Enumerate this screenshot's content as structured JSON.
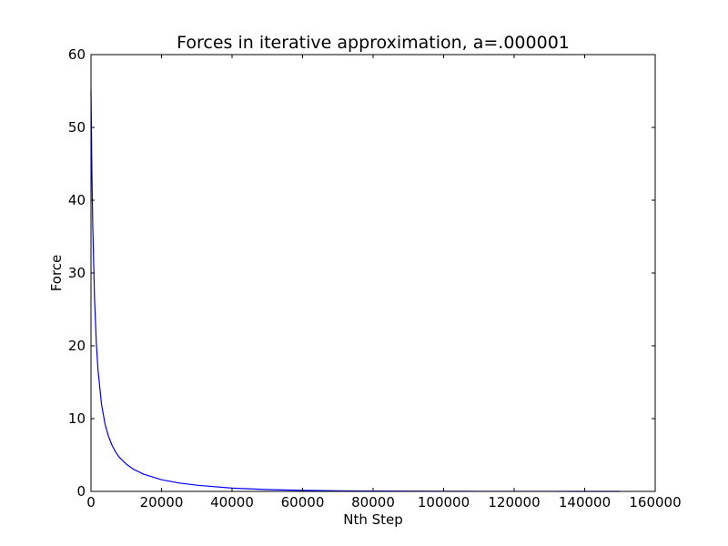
{
  "chart_data": {
    "type": "line",
    "title": "Forces in iterative approximation, a=.000001",
    "xlabel": "Nth Step",
    "ylabel": "Force",
    "xlim": [
      0,
      160000
    ],
    "ylim": [
      0,
      60
    ],
    "xticks": [
      0,
      20000,
      40000,
      60000,
      80000,
      100000,
      120000,
      140000,
      160000
    ],
    "yticks": [
      0,
      10,
      20,
      30,
      40,
      50,
      60
    ],
    "grid": false,
    "legend": "none",
    "line_color": "#0000ff",
    "series": [
      {
        "x": [
          0,
          250,
          500,
          1000,
          1500,
          2000,
          3000,
          4000,
          5000,
          6000,
          7000,
          8000,
          10000,
          12000,
          15000,
          20000,
          25000,
          30000,
          40000,
          50000,
          60000,
          70000,
          80000,
          90000,
          100000,
          110000,
          120000,
          130000,
          140000,
          150000
        ],
        "y": [
          55,
          44,
          36.5,
          26.5,
          20.5,
          16.6,
          11.9,
          9.2,
          7.5,
          6.3,
          5.4,
          4.7,
          3.75,
          3.05,
          2.35,
          1.6,
          1.15,
          0.85,
          0.45,
          0.25,
          0.14,
          0.08,
          0.05,
          0.03,
          0.02,
          0.01,
          0.01,
          0.005,
          0.003,
          0.002
        ]
      }
    ]
  }
}
